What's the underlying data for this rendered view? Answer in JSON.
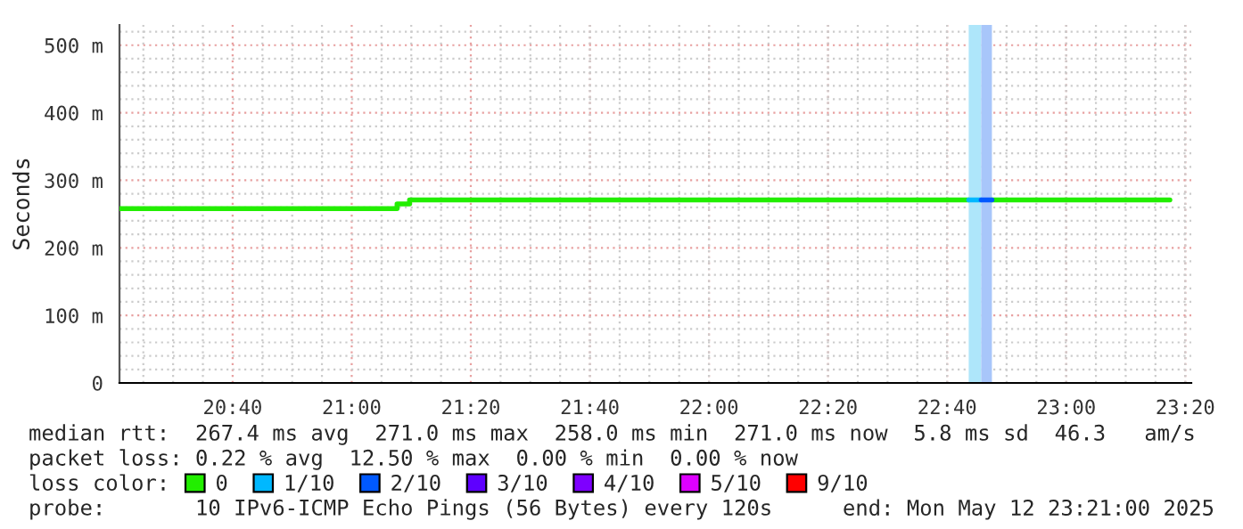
{
  "chart_data": {
    "type": "step",
    "ylabel": "Seconds",
    "xlim": [
      20.35,
      23.35
    ],
    "xticks": [
      {
        "value": 20.6667,
        "label": "20:40"
      },
      {
        "value": 21.0,
        "label": "21:00"
      },
      {
        "value": 21.3333,
        "label": "21:20"
      },
      {
        "value": 21.6667,
        "label": "21:40"
      },
      {
        "value": 22.0,
        "label": "22:00"
      },
      {
        "value": 22.3333,
        "label": "22:20"
      },
      {
        "value": 22.6667,
        "label": "22:40"
      },
      {
        "value": 23.0,
        "label": "23:00"
      },
      {
        "value": 23.3333,
        "label": "23:20"
      }
    ],
    "ylim": [
      0,
      530
    ],
    "yticks": [
      0,
      {
        "value": 100,
        "label": "100 m"
      },
      {
        "value": 200,
        "label": "200 m"
      },
      {
        "value": 300,
        "label": "300 m"
      },
      {
        "value": 400,
        "label": "400 m"
      },
      {
        "value": 500,
        "label": "500 m"
      }
    ],
    "grid": true,
    "marker": "none",
    "line_style": "solid",
    "legend": "bottom",
    "legend_title": "loss color:",
    "series": [
      {
        "name": "0",
        "color": "#22ee00",
        "x": [
          20.35,
          21.127,
          21.162,
          22.727,
          22.792,
          23.29
        ],
        "values": [
          258,
          265,
          271,
          null,
          271,
          271
        ]
      },
      {
        "name": "1/10",
        "color": "#00b8ff",
        "x": [
          22.727,
          22.762
        ],
        "values": [
          271,
          271
        ]
      },
      {
        "name": "2/10",
        "color": "#0059ff",
        "x": [
          22.762,
          22.792
        ],
        "values": [
          271,
          271
        ]
      },
      {
        "name": "3/10",
        "color": "#5e00ff"
      },
      {
        "name": "4/10",
        "color": "#7e00ff"
      },
      {
        "name": "5/10",
        "color": "#dd00ff"
      },
      {
        "name": "9/10",
        "color": "#ff0000"
      }
    ],
    "bands": [
      {
        "axis": "x",
        "from": 22.727,
        "to": 22.762,
        "color": "#aee6fa"
      },
      {
        "axis": "x",
        "from": 22.762,
        "to": 22.792,
        "color": "#a8c6fa"
      }
    ],
    "annotations": [
      "median rtt:  267.4 ms avg  271.0 ms max  258.0 ms min  271.0 ms now  5.8 ms sd  46.3   am/s",
      "packet loss: 0.22 % avg  12.50 % max  0.00 % min  0.00 % now",
      "probe:       10 IPv6-ICMP Echo Pings (56 Bytes) every 120s",
      "end: Mon May 12 23:21:00 2025"
    ]
  }
}
